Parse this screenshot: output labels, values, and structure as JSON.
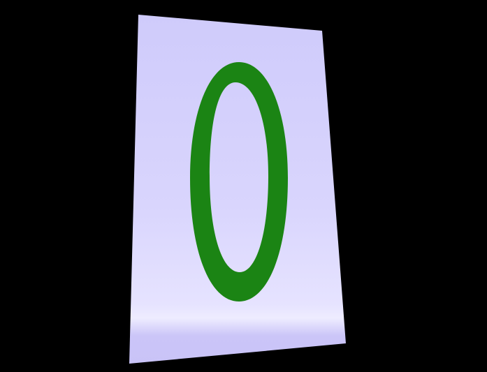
{
  "scene": {
    "card": {
      "glyph": "0",
      "colors": {
        "background": "#000000",
        "card_top": "#cfcbfb",
        "card_mid": "#dcd8fd",
        "card_highlight": "#eeecff",
        "card_bottom": "#c8c2f6",
        "glyph": "#1b8414"
      }
    }
  }
}
